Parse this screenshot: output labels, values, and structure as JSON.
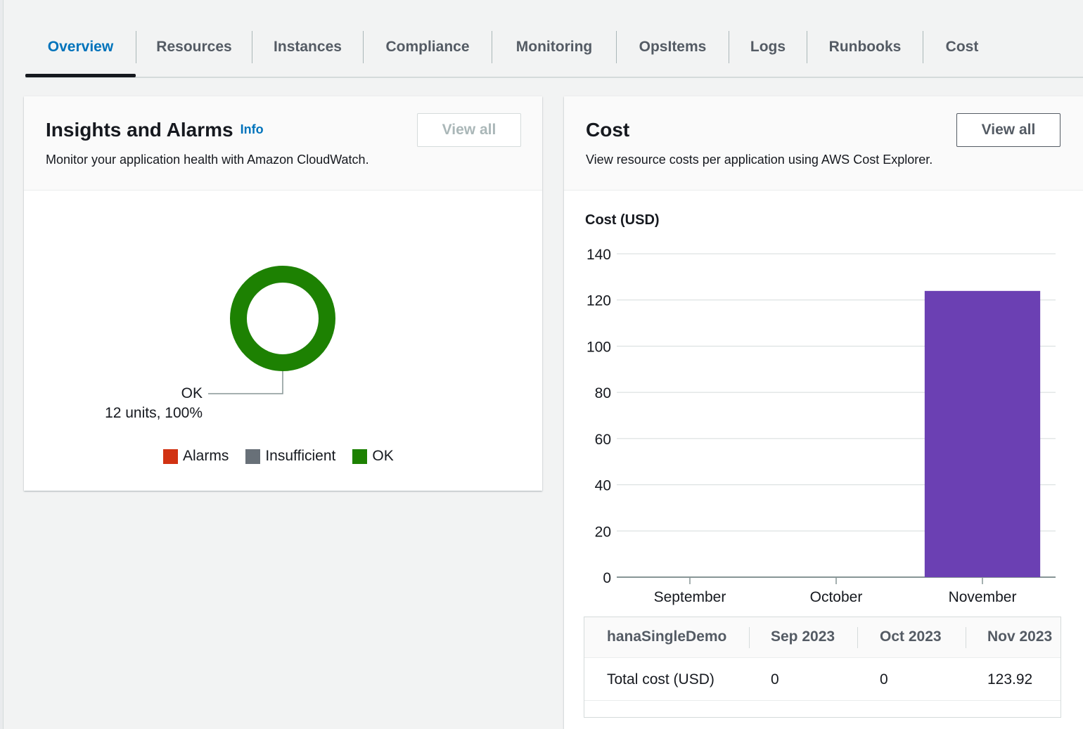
{
  "tabs": [
    {
      "label": "Overview",
      "active": true
    },
    {
      "label": "Resources"
    },
    {
      "label": "Instances"
    },
    {
      "label": "Compliance"
    },
    {
      "label": "Monitoring"
    },
    {
      "label": "OpsItems"
    },
    {
      "label": "Logs"
    },
    {
      "label": "Runbooks"
    },
    {
      "label": "Cost"
    }
  ],
  "insights": {
    "title": "Insights and Alarms",
    "info": "Info",
    "description": "Monitor your application health with Amazon CloudWatch.",
    "view_all": "View all",
    "donut": {
      "segment_label": "OK",
      "segment_detail": "12 units, 100%",
      "ok_fraction": 1.0
    },
    "legend": [
      {
        "label": "Alarms",
        "color": "#d13212"
      },
      {
        "label": "Insufficient",
        "color": "#687078"
      },
      {
        "label": "OK",
        "color": "#1d8102"
      }
    ]
  },
  "cost": {
    "title": "Cost",
    "description": "View resource costs per application using AWS Cost Explorer.",
    "view_all": "View all",
    "table": {
      "headers": [
        "hanaSingleDemo",
        "Sep 2023",
        "Oct 2023",
        "Nov 2023"
      ],
      "rows": [
        [
          "Total cost (USD)",
          "0",
          "0",
          "123.92"
        ]
      ]
    }
  },
  "chart_data": {
    "type": "bar",
    "title": "Cost (USD)",
    "categories": [
      "September",
      "October",
      "November"
    ],
    "values": [
      0,
      0,
      123.92
    ],
    "ylim": [
      0,
      140
    ],
    "yticks": [
      "0",
      "20",
      "40",
      "60",
      "80",
      "100",
      "120",
      "140"
    ],
    "grid": true,
    "bar_color": "#6b40b3",
    "xlabel": "",
    "ylabel": ""
  },
  "colors": {
    "ok": "#1d8102",
    "accent": "#0073bb"
  }
}
